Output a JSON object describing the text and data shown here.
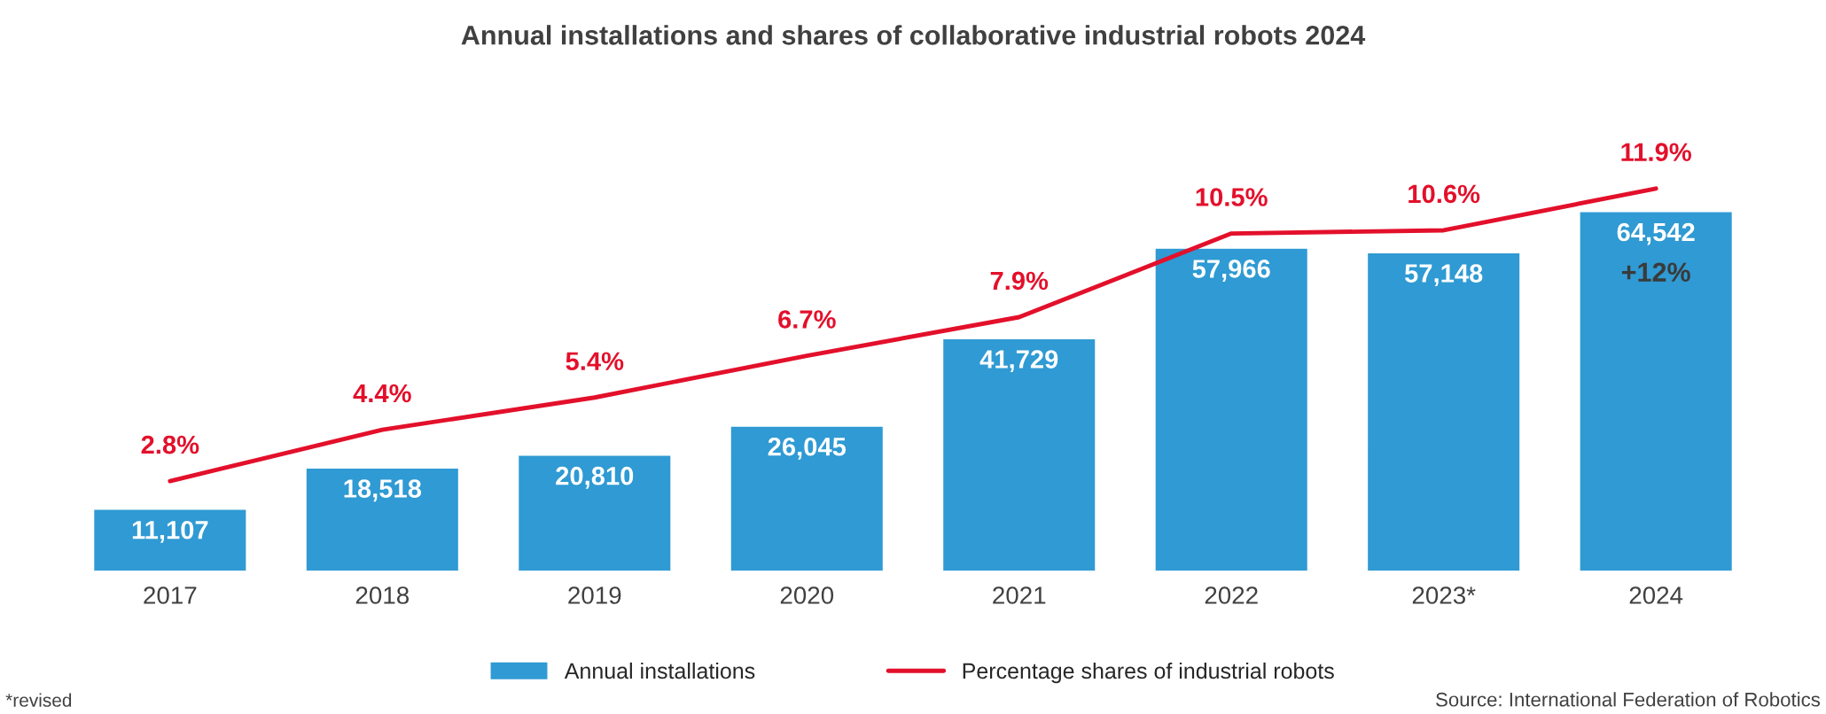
{
  "chart_data": {
    "type": "bar",
    "title": "Annual installations and shares of collaborative industrial robots 2024",
    "categories": [
      "2017",
      "2018",
      "2019",
      "2020",
      "2021",
      "2022",
      "2023*",
      "2024"
    ],
    "series": [
      {
        "name": "Annual installations",
        "color": "#2f9ad3",
        "values": [
          11107,
          18518,
          20810,
          26045,
          41729,
          57966,
          57148,
          64542
        ],
        "value_labels": [
          "11,107",
          "18,518",
          "20,810",
          "26,045",
          "41,729",
          "57,966",
          "57,148",
          "64,542"
        ]
      },
      {
        "name": "Percentage shares of industrial robots",
        "type": "line",
        "axis": "y2",
        "color": "#e3102b",
        "values": [
          2.8,
          4.4,
          5.4,
          6.7,
          7.9,
          10.5,
          10.6,
          11.9
        ],
        "value_labels": [
          "2.8%",
          "4.4%",
          "5.4%",
          "6.7%",
          "7.9%",
          "10.5%",
          "10.6%",
          "11.9%"
        ]
      }
    ],
    "annotations": [
      "+12%",
      "*revised",
      "Source: International Federation of Robotics"
    ],
    "legend": "bottom",
    "marker": "none",
    "line_style": "solid"
  }
}
